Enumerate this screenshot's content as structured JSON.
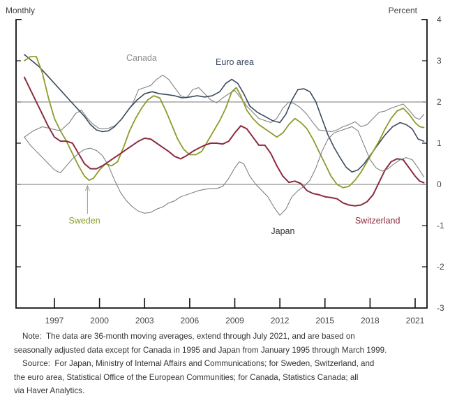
{
  "chart_data": {
    "type": "line",
    "title": "",
    "left_axis_label": "Monthly",
    "right_axis_label": "Percent",
    "xlim": [
      1994.5,
      2022.0
    ],
    "ylim": [
      -3,
      4
    ],
    "x_ticks": [
      1997,
      2000,
      2003,
      2006,
      2009,
      2012,
      2015,
      2018,
      2021
    ],
    "x_tick_labels": [
      "1997",
      "2000",
      "2003",
      "2006",
      "2009",
      "2012",
      "2015",
      "2018",
      "2021"
    ],
    "y_ticks": [
      4,
      3,
      2,
      1,
      0,
      -1,
      -2,
      -3
    ],
    "y_tick_labels": [
      "4",
      "3",
      "2",
      "1",
      "0",
      "-1",
      "-2",
      "-3"
    ],
    "reference_lines": [
      2,
      0
    ],
    "grid": false,
    "series": [
      {
        "name": "Canada",
        "color": "#8c8c8c",
        "width": 1.2,
        "label_pos": [
          2002.8,
          3.0
        ],
        "x": [
          1995.0,
          1995.6,
          1996.2,
          1996.8,
          1997.4,
          1998.0,
          1998.4,
          1998.8,
          1999.2,
          1999.6,
          2000.0,
          2000.5,
          2001.0,
          2001.4,
          2001.8,
          2002.2,
          2002.6,
          2003.0,
          2003.4,
          2003.8,
          2004.2,
          2004.6,
          2005.0,
          2005.4,
          2005.8,
          2006.2,
          2006.6,
          2007.0,
          2007.4,
          2007.8,
          2008.2,
          2008.6,
          2009.0,
          2009.4,
          2009.8,
          2010.2,
          2010.6,
          2011.0,
          2011.4,
          2011.8,
          2012.2,
          2012.6,
          2013.0,
          2013.4,
          2013.8,
          2014.2,
          2014.6,
          2015.0,
          2015.4,
          2015.8,
          2016.2,
          2016.6,
          2017.0,
          2017.4,
          2017.8,
          2018.2,
          2018.6,
          2019.0,
          2019.4,
          2019.8,
          2020.2,
          2020.6,
          2021.0,
          2021.3,
          2021.58
        ],
        "y": [
          1.15,
          1.3,
          1.4,
          1.35,
          1.3,
          1.5,
          1.72,
          1.8,
          1.6,
          1.45,
          1.35,
          1.35,
          1.42,
          1.55,
          1.75,
          1.95,
          2.3,
          2.35,
          2.4,
          2.55,
          2.65,
          2.55,
          2.35,
          2.15,
          2.1,
          2.3,
          2.35,
          2.2,
          2.05,
          1.98,
          2.1,
          2.2,
          2.28,
          2.1,
          1.9,
          1.75,
          1.6,
          1.55,
          1.5,
          1.6,
          1.85,
          2.0,
          1.95,
          1.85,
          1.7,
          1.5,
          1.32,
          1.3,
          1.28,
          1.32,
          1.4,
          1.45,
          1.52,
          1.4,
          1.45,
          1.6,
          1.75,
          1.78,
          1.85,
          1.9,
          1.95,
          1.8,
          1.62,
          1.58,
          1.7
        ]
      },
      {
        "name": "Euro area",
        "color": "#3a4a5e",
        "width": 1.6,
        "label_pos": [
          2009.0,
          2.9
        ],
        "x": [
          1995.0,
          1995.5,
          1996.0,
          1996.5,
          1997.0,
          1997.5,
          1998.0,
          1998.5,
          1999.0,
          1999.4,
          1999.8,
          2000.2,
          2000.6,
          2001.0,
          2001.5,
          2002.0,
          2002.5,
          2003.0,
          2003.5,
          2004.0,
          2004.5,
          2005.0,
          2005.5,
          2006.0,
          2006.5,
          2007.0,
          2007.5,
          2008.0,
          2008.4,
          2008.8,
          2009.2,
          2009.6,
          2010.0,
          2010.5,
          2011.0,
          2011.5,
          2012.0,
          2012.4,
          2012.8,
          2013.2,
          2013.6,
          2014.0,
          2014.4,
          2014.8,
          2015.2,
          2015.6,
          2016.0,
          2016.4,
          2016.8,
          2017.2,
          2017.6,
          2018.0,
          2018.5,
          2019.0,
          2019.5,
          2020.0,
          2020.4,
          2020.8,
          2021.2,
          2021.58
        ],
        "y": [
          3.15,
          3.0,
          2.85,
          2.65,
          2.45,
          2.25,
          2.05,
          1.85,
          1.65,
          1.45,
          1.32,
          1.28,
          1.3,
          1.4,
          1.6,
          1.85,
          2.05,
          2.2,
          2.25,
          2.2,
          2.18,
          2.15,
          2.1,
          2.12,
          2.15,
          2.12,
          2.15,
          2.25,
          2.45,
          2.55,
          2.45,
          2.2,
          1.9,
          1.75,
          1.65,
          1.55,
          1.5,
          1.7,
          2.05,
          2.3,
          2.32,
          2.25,
          2.0,
          1.6,
          1.2,
          0.9,
          0.65,
          0.42,
          0.3,
          0.35,
          0.5,
          0.7,
          0.95,
          1.2,
          1.4,
          1.5,
          1.45,
          1.35,
          1.1,
          1.05
        ]
      },
      {
        "name": "Sweden",
        "color": "#8f9a2b",
        "width": 1.8,
        "label_pos": [
          1999.0,
          -0.95
        ],
        "arrow_to": [
          1999.2,
          0.0
        ],
        "x": [
          1995.0,
          1995.4,
          1995.8,
          1996.2,
          1996.6,
          1997.0,
          1997.4,
          1997.8,
          1998.2,
          1998.6,
          1999.0,
          1999.3,
          1999.6,
          2000.0,
          2000.4,
          2000.8,
          2001.2,
          2001.6,
          2002.0,
          2002.4,
          2002.8,
          2003.2,
          2003.6,
          2004.0,
          2004.4,
          2004.8,
          2005.2,
          2005.6,
          2006.0,
          2006.4,
          2006.8,
          2007.2,
          2007.6,
          2008.0,
          2008.4,
          2008.8,
          2009.1,
          2009.4,
          2009.8,
          2010.2,
          2010.6,
          2011.0,
          2011.4,
          2011.8,
          2012.2,
          2012.6,
          2013.0,
          2013.4,
          2013.8,
          2014.2,
          2014.6,
          2015.0,
          2015.4,
          2015.8,
          2016.2,
          2016.6,
          2017.0,
          2017.4,
          2017.8,
          2018.2,
          2018.6,
          2019.0,
          2019.4,
          2019.8,
          2020.2,
          2020.6,
          2021.0,
          2021.3,
          2021.58
        ],
        "y": [
          3.0,
          3.1,
          3.1,
          2.7,
          2.1,
          1.6,
          1.3,
          1.05,
          0.75,
          0.45,
          0.2,
          0.1,
          0.15,
          0.35,
          0.5,
          0.45,
          0.55,
          0.9,
          1.3,
          1.6,
          1.85,
          2.05,
          2.15,
          2.1,
          1.8,
          1.45,
          1.1,
          0.85,
          0.72,
          0.72,
          0.8,
          1.05,
          1.3,
          1.55,
          1.85,
          2.25,
          2.35,
          2.15,
          1.8,
          1.6,
          1.45,
          1.35,
          1.25,
          1.15,
          1.25,
          1.45,
          1.6,
          1.5,
          1.35,
          1.1,
          0.8,
          0.5,
          0.2,
          0.0,
          -0.08,
          -0.05,
          0.1,
          0.3,
          0.55,
          0.8,
          1.05,
          1.35,
          1.6,
          1.78,
          1.85,
          1.7,
          1.5,
          1.4,
          1.38
        ]
      },
      {
        "name": "Switzerland",
        "color": "#8c2a3e",
        "width": 2.0,
        "label_pos": [
          2018.5,
          -0.95
        ],
        "x": [
          1995.0,
          1995.4,
          1995.8,
          1996.2,
          1996.6,
          1997.0,
          1997.4,
          1997.8,
          1998.2,
          1998.6,
          1999.0,
          1999.4,
          1999.8,
          2000.2,
          2000.6,
          2001.0,
          2001.4,
          2001.8,
          2002.2,
          2002.6,
          2003.0,
          2003.4,
          2003.8,
          2004.2,
          2004.6,
          2005.0,
          2005.4,
          2005.8,
          2006.2,
          2006.6,
          2007.0,
          2007.4,
          2007.8,
          2008.2,
          2008.6,
          2009.0,
          2009.4,
          2009.8,
          2010.2,
          2010.6,
          2011.0,
          2011.4,
          2011.8,
          2012.2,
          2012.6,
          2013.0,
          2013.4,
          2013.8,
          2014.2,
          2014.6,
          2015.0,
          2015.4,
          2015.8,
          2016.2,
          2016.6,
          2017.0,
          2017.4,
          2017.8,
          2018.2,
          2018.6,
          2019.0,
          2019.4,
          2019.8,
          2020.2,
          2020.6,
          2021.0,
          2021.3,
          2021.58
        ],
        "y": [
          2.6,
          2.3,
          2.0,
          1.7,
          1.4,
          1.15,
          1.05,
          1.05,
          1.0,
          0.75,
          0.5,
          0.38,
          0.38,
          0.45,
          0.55,
          0.65,
          0.75,
          0.85,
          0.95,
          1.05,
          1.12,
          1.1,
          1.0,
          0.9,
          0.8,
          0.68,
          0.62,
          0.7,
          0.8,
          0.88,
          0.95,
          1.0,
          1.0,
          0.98,
          1.05,
          1.25,
          1.42,
          1.35,
          1.15,
          0.95,
          0.95,
          0.75,
          0.45,
          0.2,
          0.05,
          0.08,
          0.02,
          -0.15,
          -0.22,
          -0.25,
          -0.3,
          -0.32,
          -0.35,
          -0.45,
          -0.5,
          -0.52,
          -0.5,
          -0.42,
          -0.25,
          0.05,
          0.35,
          0.55,
          0.62,
          0.6,
          0.4,
          0.2,
          0.08,
          0.04
        ]
      },
      {
        "name": "Japan",
        "color": "#777777",
        "width": 1.0,
        "label_pos": [
          2012.2,
          -1.2
        ],
        "x": [
          1995.0,
          1995.4,
          1995.8,
          1996.2,
          1996.6,
          1997.0,
          1997.4,
          1997.8,
          1998.2,
          1998.6,
          1999.0,
          1999.4,
          1999.8,
          2000.2,
          2000.6,
          2001.0,
          2001.4,
          2001.8,
          2002.2,
          2002.6,
          2003.0,
          2003.4,
          2003.8,
          2004.2,
          2004.6,
          2005.0,
          2005.4,
          2005.8,
          2006.2,
          2006.6,
          2007.0,
          2007.4,
          2007.8,
          2008.2,
          2008.6,
          2009.0,
          2009.3,
          2009.6,
          2010.0,
          2010.4,
          2010.8,
          2011.2,
          2011.6,
          2012.0,
          2012.4,
          2012.8,
          2013.2,
          2013.6,
          2014.0,
          2014.4,
          2014.8,
          2015.2,
          2015.6,
          2016.0,
          2016.4,
          2016.8,
          2017.2,
          2017.6,
          2018.0,
          2018.4,
          2018.8,
          2019.2,
          2019.6,
          2020.0,
          2020.4,
          2020.8,
          2021.2,
          2021.58
        ],
        "y": [
          1.15,
          0.95,
          0.8,
          0.65,
          0.5,
          0.35,
          0.28,
          0.45,
          0.62,
          0.75,
          0.85,
          0.88,
          0.82,
          0.7,
          0.45,
          0.1,
          -0.2,
          -0.4,
          -0.55,
          -0.65,
          -0.7,
          -0.68,
          -0.6,
          -0.55,
          -0.45,
          -0.4,
          -0.3,
          -0.25,
          -0.2,
          -0.15,
          -0.12,
          -0.1,
          -0.1,
          -0.05,
          0.15,
          0.4,
          0.55,
          0.5,
          0.2,
          0.0,
          -0.15,
          -0.3,
          -0.55,
          -0.75,
          -0.6,
          -0.3,
          -0.15,
          -0.05,
          0.1,
          0.4,
          0.8,
          1.1,
          1.25,
          1.3,
          1.35,
          1.4,
          1.3,
          0.95,
          0.6,
          0.4,
          0.32,
          0.38,
          0.5,
          0.6,
          0.65,
          0.6,
          0.4,
          0.18
        ]
      }
    ]
  },
  "notes": {
    "note_prefix": "Note:",
    "note_line1": "The data are 36-month moving averages, extend through July 2021, and are based on",
    "note_line2": "seasonally adjusted data except for Canada in 1995 and Japan from January 1995 through March 1999.",
    "source_prefix": "Source:",
    "source_line1": "For Japan, Ministry of Internal Affairs and Communications; for Sweden, Switzerland, and",
    "source_line2": "the euro area, Statistical Office of the European Communities; for Canada, Statistics Canada; all",
    "source_line3": "via Haver Analytics."
  }
}
